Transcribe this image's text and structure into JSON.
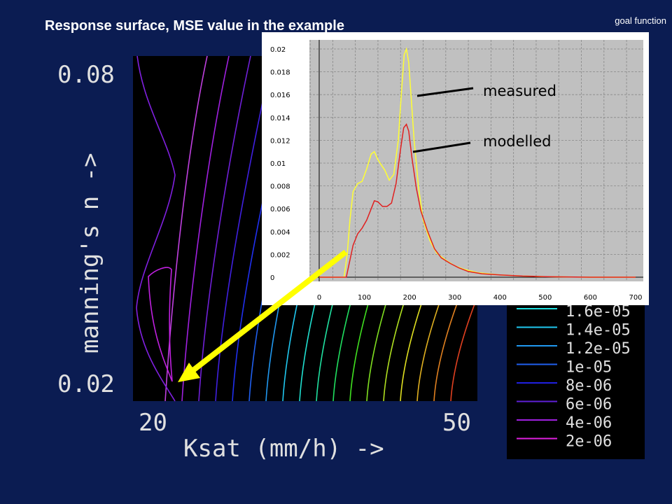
{
  "slide": {
    "title": "Response surface, MSE value in the example",
    "corner_label": "goal function"
  },
  "colors": {
    "background": "#0b1c52",
    "surface_bg": "#000000",
    "inset_bg": "#c0c0c0",
    "measured": "#ffff33",
    "modelled": "#e02020",
    "arrow": "#ffff00"
  },
  "chart_data": [
    {
      "type": "contour",
      "title": "",
      "xlabel": "Ksat (mm/h) ->",
      "ylabel": "manning's n ->",
      "x_ticks": [
        "20",
        "50"
      ],
      "y_ticks": [
        "0.08",
        "0.02"
      ],
      "xlim": [
        20,
        50
      ],
      "ylim": [
        0.02,
        0.08
      ],
      "legend": {
        "placement": "right",
        "visible_entries": [
          {
            "label": "1.6e-05",
            "color": "#20e0e0"
          },
          {
            "label": "1.4e-05",
            "color": "#20c8f0"
          },
          {
            "label": "1.2e-05",
            "color": "#2098f0"
          },
          {
            "label": "1e-05",
            "color": "#2060f0"
          },
          {
            "label": "8e-06",
            "color": "#2020e0"
          },
          {
            "label": "6e-06",
            "color": "#6020d8"
          },
          {
            "label": "4e-06",
            "color": "#a020e0"
          },
          {
            "label": "2e-06",
            "color": "#e020e0"
          }
        ]
      }
    },
    {
      "type": "line",
      "title": "",
      "xlabel": "",
      "ylabel": "",
      "xlim": [
        0,
        700
      ],
      "ylim": [
        0,
        0.02
      ],
      "x_ticks": [
        0,
        100,
        200,
        300,
        400,
        500,
        600,
        700
      ],
      "y_ticks": [
        0,
        0.002,
        0.004,
        0.006,
        0.008,
        0.01,
        0.012,
        0.014,
        0.016,
        0.018,
        0.02
      ],
      "grid": true,
      "series": [
        {
          "name": "measured",
          "color": "#ffff33",
          "x": [
            0,
            55,
            62,
            68,
            75,
            85,
            95,
            105,
            115,
            122,
            130,
            138,
            145,
            155,
            165,
            175,
            182,
            188,
            193,
            198,
            203,
            210,
            220,
            230,
            245,
            260,
            280,
            300,
            320,
            350,
            400,
            450,
            500,
            600,
            700
          ],
          "y": [
            0,
            0,
            0.002,
            0.005,
            0.0075,
            0.0082,
            0.0084,
            0.0095,
            0.0108,
            0.011,
            0.0103,
            0.0098,
            0.0094,
            0.0085,
            0.009,
            0.012,
            0.0162,
            0.0195,
            0.02,
            0.0188,
            0.016,
            0.012,
            0.0078,
            0.005,
            0.0032,
            0.0021,
            0.0015,
            0.001,
            0.0007,
            0.0004,
            0.0002,
            0.0001,
            5e-05,
            0,
            0
          ]
        },
        {
          "name": "modelled",
          "color": "#e02020",
          "x": [
            0,
            60,
            68,
            75,
            85,
            95,
            105,
            115,
            122,
            130,
            140,
            150,
            160,
            170,
            180,
            187,
            193,
            198,
            205,
            215,
            225,
            240,
            255,
            270,
            290,
            310,
            330,
            360,
            400,
            450,
            500,
            600,
            700
          ],
          "y": [
            0,
            0,
            0.0015,
            0.0028,
            0.0038,
            0.0043,
            0.005,
            0.006,
            0.0067,
            0.0066,
            0.0062,
            0.0062,
            0.0065,
            0.0082,
            0.0112,
            0.0131,
            0.0134,
            0.0128,
            0.0105,
            0.0078,
            0.0058,
            0.004,
            0.0025,
            0.0017,
            0.0012,
            0.0008,
            0.0005,
            0.0003,
            0.0002,
            0.0001,
            5e-05,
            0,
            0
          ]
        }
      ],
      "annotations": [
        {
          "text": "measured",
          "points_to": "measured"
        },
        {
          "text": "modelled",
          "points_to": "modelled"
        }
      ]
    }
  ]
}
